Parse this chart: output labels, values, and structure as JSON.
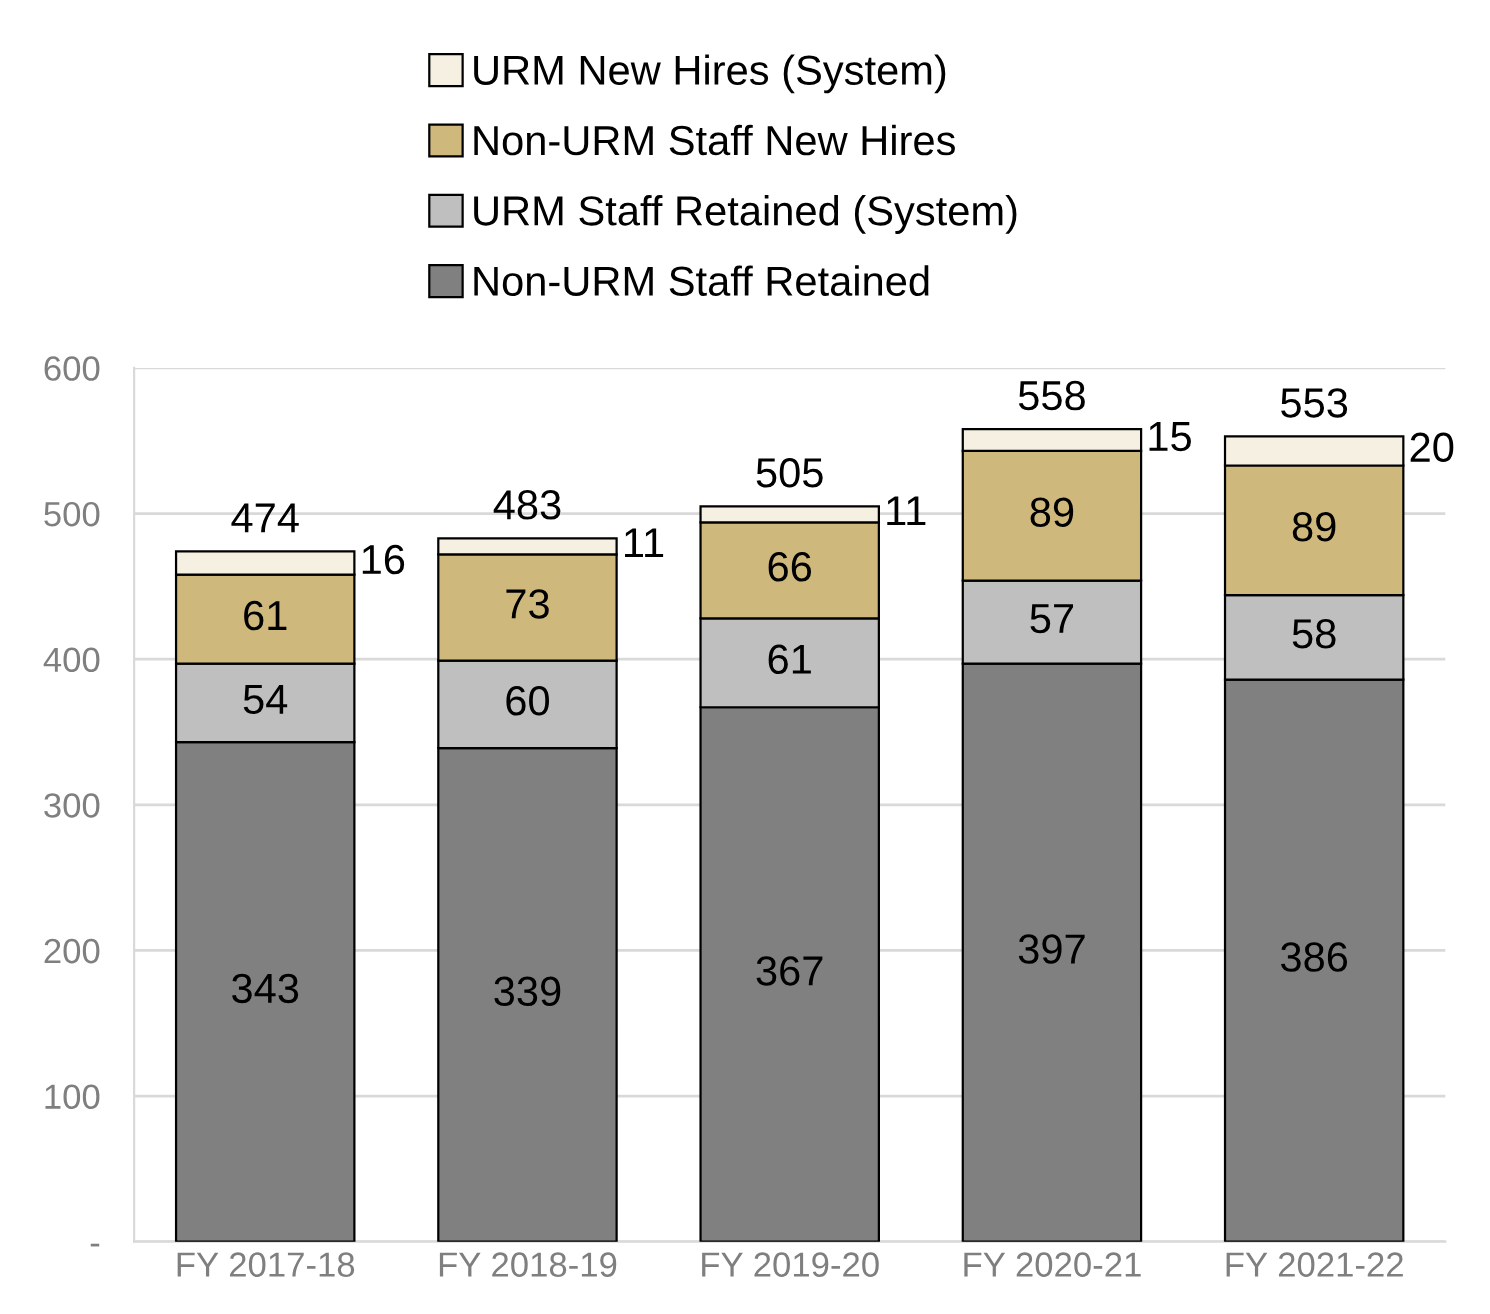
{
  "chart_data": {
    "type": "bar",
    "stacked": true,
    "categories": [
      "FY 2017-18",
      "FY 2018-19",
      "FY 2019-20",
      "FY 2020-21",
      "FY 2021-22"
    ],
    "series": [
      {
        "name": "Non-URM Staff Retained",
        "color": "#808080",
        "values": [
          343,
          339,
          367,
          397,
          386
        ]
      },
      {
        "name": "URM Staff Retained (System)",
        "color": "#bfbfbf",
        "values": [
          54,
          60,
          61,
          57,
          58
        ]
      },
      {
        "name": "Non-URM Staff New Hires",
        "color": "#cfb87c",
        "values": [
          61,
          73,
          66,
          89,
          89
        ]
      },
      {
        "name": "URM New Hires (System)",
        "color": "#f5f0e1",
        "values": [
          16,
          11,
          11,
          15,
          20
        ]
      }
    ],
    "totals": [
      "474",
      "483",
      "505",
      "558",
      "553"
    ],
    "data_labels": true,
    "ylim": [
      0,
      600
    ],
    "yticks": [
      {
        "value": 0,
        "label": "-"
      },
      100,
      200,
      300,
      400,
      500,
      600
    ],
    "grid": "y",
    "legend": "top"
  }
}
